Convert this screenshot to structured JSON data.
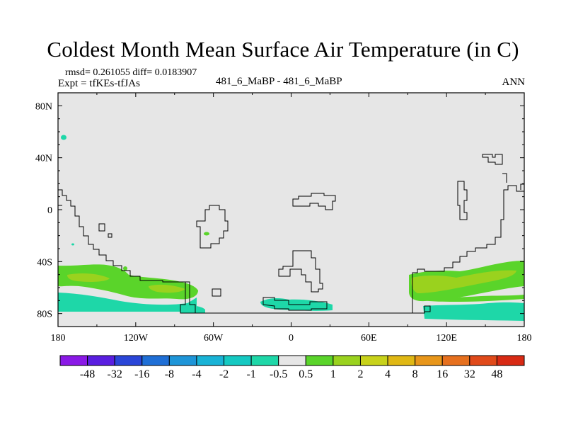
{
  "title": "Coldest Month Mean Surface Air Temperature (in C)",
  "stats": "rmsd= 0.261055 diff= 0.0183907",
  "experiment": "Expt = tfKEs-tfJAs",
  "comparison": "481_6_MaBP - 481_6_MaBP",
  "period": "ANN",
  "map": {
    "lat_ticks": [
      "80N",
      "40N",
      "0",
      "40S",
      "80S"
    ],
    "lon_ticks": [
      "180",
      "120W",
      "60W",
      "0",
      "60E",
      "120E",
      "180"
    ],
    "projection": "cylindrical equidistant, 180W-180E, 90S-90N",
    "background_color": "#e6e6e6",
    "coastline_color": "#000000"
  },
  "colorbar": {
    "labels": [
      "-48",
      "-32",
      "-16",
      "-8",
      "-4",
      "-2",
      "-1",
      "-0.5",
      "0.5",
      "1",
      "2",
      "4",
      "8",
      "16",
      "32",
      "48"
    ],
    "colors": [
      "#8a19e6",
      "#5a1ee0",
      "#2a46d8",
      "#1f6fd6",
      "#1e95d8",
      "#19b3d6",
      "#15c9c2",
      "#1ed7a8",
      "#e6e6e6",
      "#5ad42a",
      "#9ad21e",
      "#c8d21a",
      "#e0b814",
      "#e8961a",
      "#e6701e",
      "#e04a1a",
      "#d82a14"
    ]
  }
}
